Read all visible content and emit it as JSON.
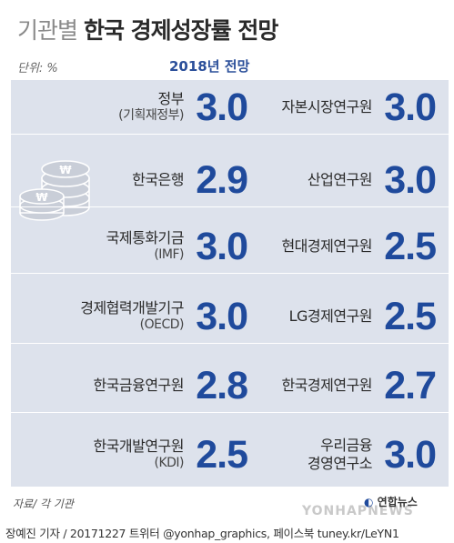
{
  "header": {
    "title_light": "기관별",
    "title_bold": "한국 경제성장률 전망",
    "unit": "단위: %",
    "year_label": "2018년 전망"
  },
  "rows": [
    {
      "left": {
        "name": "정부",
        "sub": "(기획재정부)",
        "value": "3.0"
      },
      "right": {
        "name": "자본시장연구원",
        "sub": "",
        "value": "3.0"
      }
    },
    {
      "left": {
        "name": "한국은행",
        "sub": "",
        "value": "2.9"
      },
      "right": {
        "name": "산업연구원",
        "sub": "",
        "value": "3.0"
      }
    },
    {
      "left": {
        "name": "국제통화기금",
        "sub": "(IMF)",
        "value": "3.0"
      },
      "right": {
        "name": "현대경제연구원",
        "sub": "",
        "value": "2.5"
      }
    },
    {
      "left": {
        "name": "경제협력개발기구",
        "sub": "(OECD)",
        "value": "3.0"
      },
      "right": {
        "name": "LG경제연구원",
        "sub": "",
        "value": "2.5"
      }
    },
    {
      "left": {
        "name": "한국금융연구원",
        "sub": "",
        "value": "2.8"
      },
      "right": {
        "name": "한국경제연구원",
        "sub": "",
        "value": "2.7"
      }
    },
    {
      "left": {
        "name": "한국개발연구원",
        "sub": "(KDI)",
        "value": "2.5"
      },
      "right": {
        "name": "우리금융",
        "sub": "경영연구소",
        "value": "3.0"
      }
    }
  ],
  "footer": {
    "source": "자료/ 각 기관",
    "brand": "연합뉴스",
    "watermark": "YONHAPNEWS",
    "credit": "장예진 기자 / 20171227 트위터 @yonhap_graphics, 페이스북 tuney.kr/LeYN1"
  },
  "colors": {
    "panel": "#dde2ec",
    "value": "#1f4a9c"
  },
  "icons": [
    "won-coins-icon"
  ]
}
